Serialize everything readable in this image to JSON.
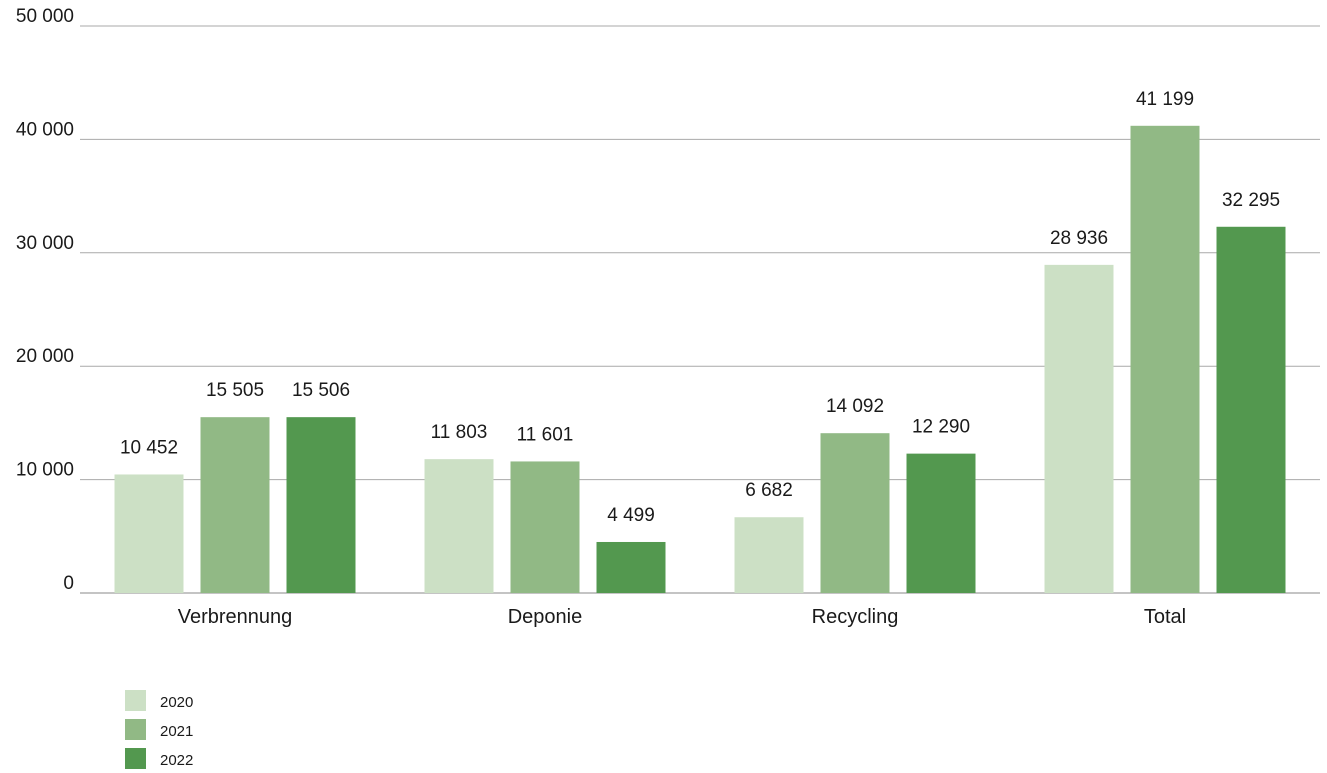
{
  "chart_data": {
    "type": "bar",
    "title": "",
    "xlabel": "",
    "ylabel": "",
    "categories": [
      "Verbrennung",
      "Deponie",
      "Recycling",
      "Total"
    ],
    "series": [
      {
        "name": "2020",
        "color": "#cce0c5",
        "values": [
          10452,
          11803,
          6682,
          28936
        ],
        "labels": [
          "10 452",
          "11 803",
          "6 682",
          "28 936"
        ]
      },
      {
        "name": "2021",
        "color": "#91b985",
        "values": [
          15505,
          11601,
          14092,
          41199
        ],
        "labels": [
          "15 505",
          "11 601",
          "14 092",
          "41 199"
        ]
      },
      {
        "name": "2022",
        "color": "#53984f",
        "values": [
          15506,
          4499,
          12290,
          32295
        ],
        "labels": [
          "15 506",
          "4 499",
          "12 290",
          "32 295"
        ]
      }
    ],
    "ylim": [
      0,
      50000
    ],
    "yticks": [
      0,
      10000,
      20000,
      30000,
      40000,
      50000
    ],
    "ytick_labels": [
      "0",
      "10 000",
      "20 000",
      "30 000",
      "40 000",
      "50 000"
    ],
    "grid": true,
    "legend_position": "bottom-left"
  }
}
